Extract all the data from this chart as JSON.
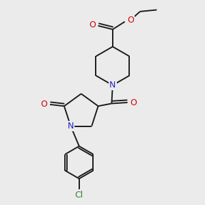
{
  "bg_color": "#ebebeb",
  "bond_color": "#1a1a1a",
  "N_color": "#2222cc",
  "O_color": "#cc0000",
  "Cl_color": "#228822",
  "bond_width": 1.4,
  "fig_size": [
    3.0,
    3.0
  ],
  "dpi": 100,
  "xlim": [
    0,
    10
  ],
  "ylim": [
    0,
    10
  ]
}
